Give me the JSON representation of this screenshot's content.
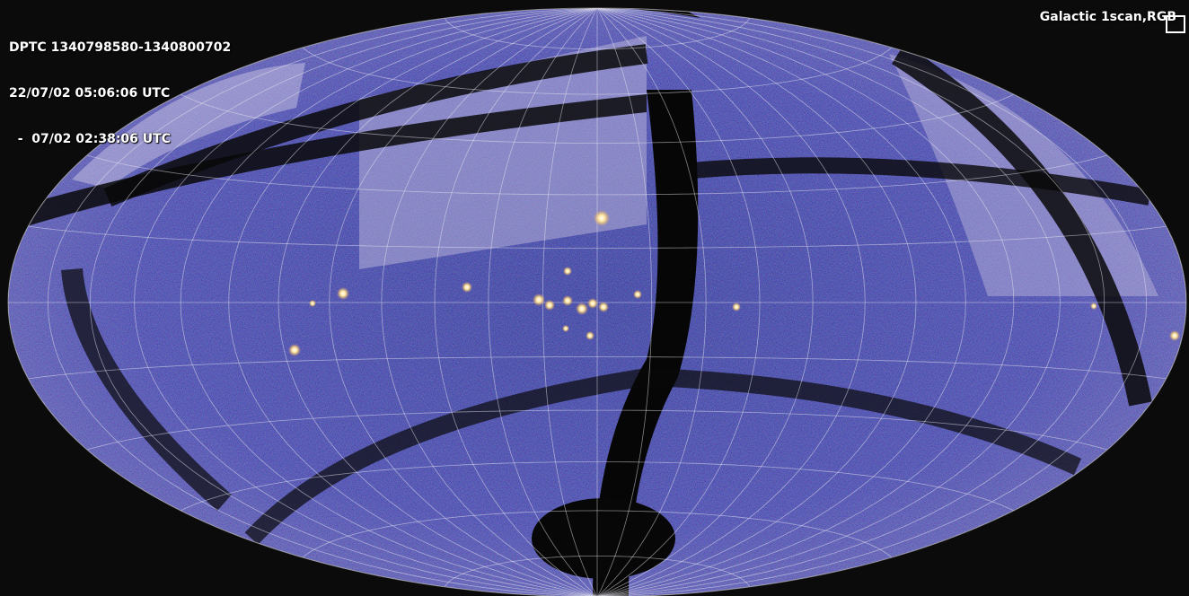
{
  "header": {
    "lines": [
      "DPTC 1340798580-1340800702",
      "22/07/02 05:06:06 UTC",
      "  -  07/02 02:38:06 UTC"
    ]
  },
  "projection_label": "Galactic 1scan,RGB"
}
